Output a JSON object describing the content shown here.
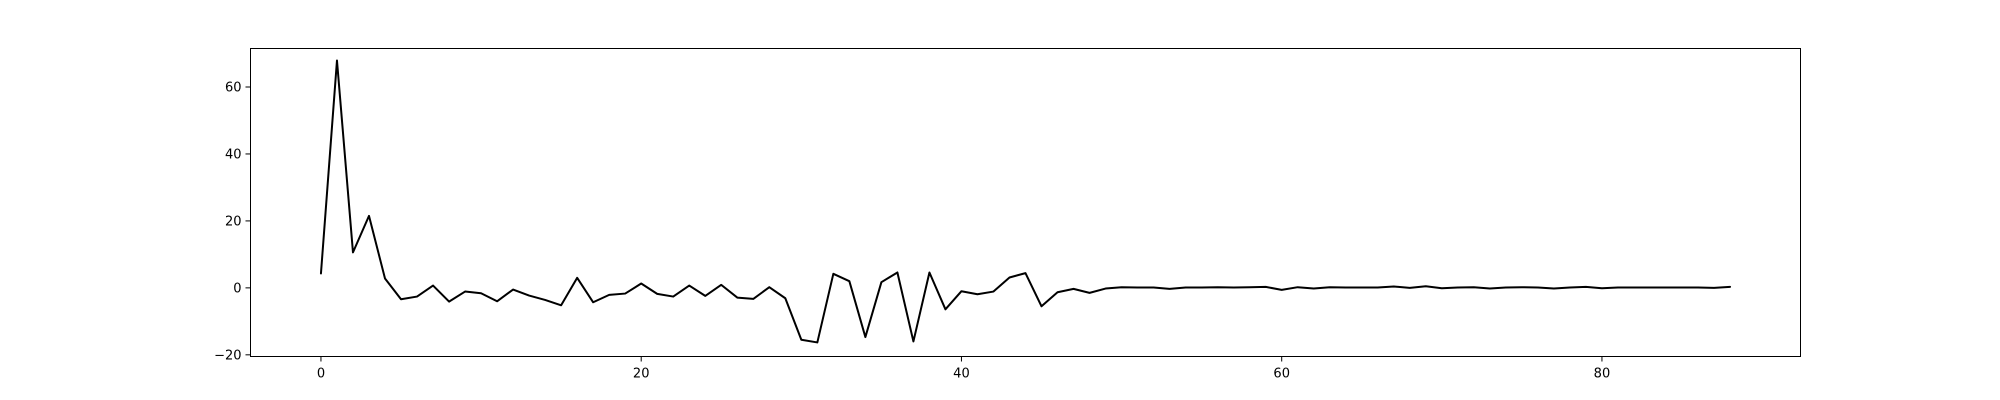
{
  "chart_data": {
    "type": "line",
    "title": "",
    "xlabel": "",
    "ylabel": "",
    "xlim": [
      -4.4,
      92.4
    ],
    "ylim": [
      -20.5,
      71.5
    ],
    "grid": false,
    "legend": "none",
    "xticks": [
      0,
      20,
      40,
      60,
      80
    ],
    "yticks": [
      -20,
      0,
      20,
      40,
      60
    ],
    "xtick_labels": [
      "0",
      "20",
      "40",
      "60",
      "80"
    ],
    "ytick_labels": [
      "−20",
      "0",
      "20",
      "40",
      "60"
    ],
    "series": [
      {
        "color": "#000000",
        "x": [
          0,
          1,
          2,
          3,
          4,
          5,
          6,
          7,
          8,
          9,
          10,
          11,
          12,
          13,
          14,
          15,
          16,
          17,
          18,
          19,
          20,
          21,
          22,
          23,
          24,
          25,
          26,
          27,
          28,
          29,
          30,
          31,
          32,
          33,
          34,
          35,
          36,
          37,
          38,
          39,
          40,
          41,
          42,
          43,
          44,
          45,
          46,
          47,
          48,
          49,
          50,
          51,
          52,
          53,
          54,
          55,
          56,
          57,
          58,
          59,
          60,
          61,
          62,
          63,
          64,
          65,
          66,
          67,
          68,
          69,
          70,
          71,
          72,
          73,
          74,
          75,
          76,
          77,
          78,
          79,
          80,
          81,
          82,
          83,
          84,
          85,
          86,
          87,
          88
        ],
        "y": [
          4.3,
          67.9,
          10.6,
          21.5,
          2.8,
          -3.4,
          -2.6,
          0.7,
          -4.1,
          -1.1,
          -1.6,
          -4.0,
          -0.5,
          -2.3,
          -3.6,
          -5.2,
          3.0,
          -4.3,
          -2.1,
          -1.7,
          1.3,
          -1.8,
          -2.6,
          0.7,
          -2.4,
          0.9,
          -2.9,
          -3.3,
          0.2,
          -3.1,
          -15.5,
          -16.3,
          4.2,
          2.0,
          -14.7,
          1.7,
          4.6,
          -16.0,
          4.6,
          -6.4,
          -1.0,
          -1.9,
          -1.1,
          3.1,
          4.4,
          -5.5,
          -1.3,
          -0.3,
          -1.5,
          -0.2,
          0.2,
          0.1,
          0.1,
          -0.3,
          0.1,
          0.1,
          0.2,
          0.1,
          0.2,
          0.3,
          -0.6,
          0.2,
          -0.2,
          0.2,
          0.1,
          0.1,
          0.1,
          0.4,
          0.0,
          0.5,
          -0.1,
          0.1,
          0.2,
          -0.2,
          0.1,
          0.2,
          0.1,
          -0.2,
          0.1,
          0.3,
          -0.1,
          0.1,
          0.1,
          0.1,
          0.1,
          0.1,
          0.1,
          0.0,
          0.3
        ]
      }
    ]
  }
}
